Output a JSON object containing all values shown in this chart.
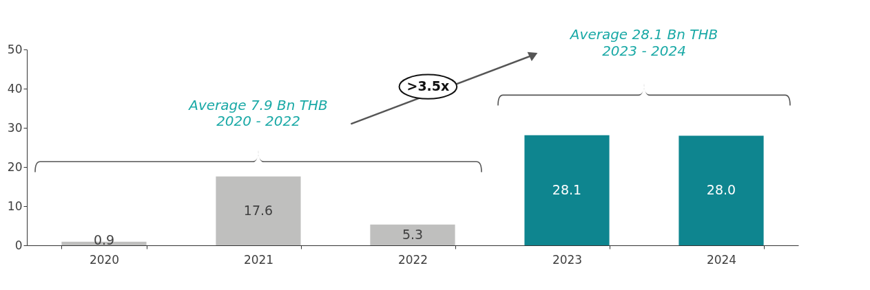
{
  "chart_data": {
    "type": "bar",
    "categories": [
      "2020",
      "2021",
      "2022",
      "2023",
      "2024"
    ],
    "values": [
      0.9,
      17.6,
      5.3,
      28.1,
      28.0
    ],
    "colors": [
      "#bfbfbe",
      "#bfbfbe",
      "#bfbfbe",
      "#0e858f",
      "#0e858f"
    ],
    "ylim": [
      0,
      50
    ],
    "yticks": [
      0,
      10,
      20,
      30,
      40,
      50
    ],
    "grid": false,
    "value_labels": [
      "0.9",
      "17.6",
      "5.3",
      "28.1",
      "28.0"
    ],
    "annotations": [
      "Average 7.9 Bn THB\n2020 - 2022",
      "Average 28.1 Bn THB\n2023 - 2024",
      ">3.5x"
    ]
  }
}
